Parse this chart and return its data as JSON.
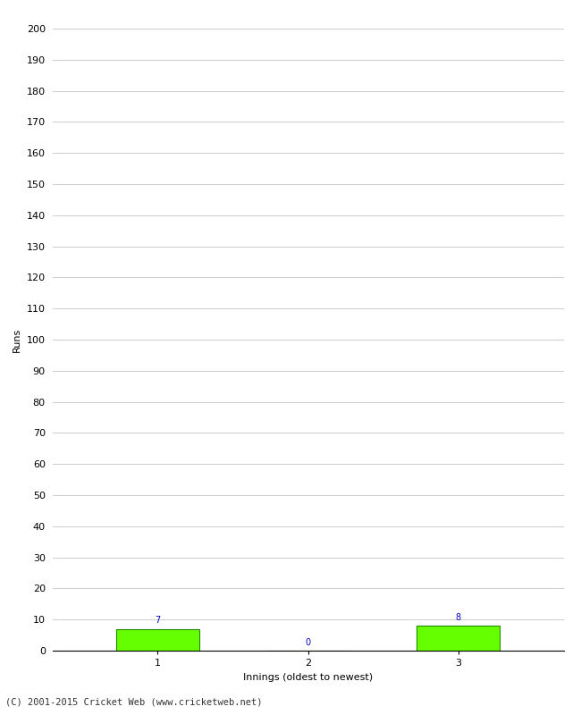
{
  "innings": [
    1,
    2,
    3
  ],
  "runs": [
    7,
    0,
    8
  ],
  "bar_color": "#66ff00",
  "bar_edge_color": "#228800",
  "ylabel": "Runs",
  "xlabel": "Innings (oldest to newest)",
  "ylim": [
    0,
    200
  ],
  "yticks": [
    0,
    10,
    20,
    30,
    40,
    50,
    60,
    70,
    80,
    90,
    100,
    110,
    120,
    130,
    140,
    150,
    160,
    170,
    180,
    190,
    200
  ],
  "xticks": [
    1,
    2,
    3
  ],
  "annotation_color": "#0000cc",
  "annotation_fontsize": 7,
  "axis_label_fontsize": 8,
  "tick_fontsize": 8,
  "footer_text": "(C) 2001-2015 Cricket Web (www.cricketweb.net)",
  "footer_fontsize": 7.5,
  "background_color": "#ffffff",
  "grid_color": "#cccccc",
  "bar_width": 0.55
}
